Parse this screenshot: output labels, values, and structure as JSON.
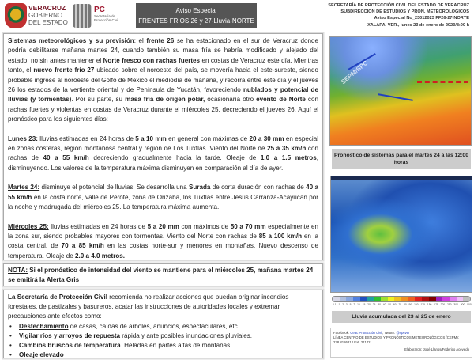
{
  "header": {
    "logo1": {
      "line1": "VERACRUZ",
      "line2": "GOBIERNO",
      "line3": "DEL ESTADO"
    },
    "logo2": {
      "abbr": "PC",
      "line1": "Secretaría de",
      "line2": "Protección Civil"
    },
    "title_line1": "Aviso Especial",
    "title_line2": "FRENTES FRIOS 26 y 27-Lluvia-NORTE",
    "org_line1": "SECRETARÍA DE PROTECCIÓN CIVIL DEL ESTADO DE VERACRUZ",
    "org_line2": "SUBDIRECCIÓN DE ESTUDIOS Y PRON. METEOROLÓGICOS",
    "aviso_no": "Aviso Especial No_23012023 FF26-27-NORTE",
    "place_date": "XALAPA, VER., lunes 23 de enero de 2023/8:00 h"
  },
  "main": {
    "paragraphs": [
      [
        [
          "Sistemas meteorológicos y su previsión",
          "bu"
        ],
        [
          ": el ",
          ""
        ],
        [
          "frente 26",
          "b"
        ],
        [
          " se ha estacionado en el sur de Veracruz donde podría debilitarse mañana martes 24, cuando también su masa fría se habría modificado y alejado del estado, no sin antes mantener el ",
          ""
        ],
        [
          "Norte fresco con rachas fuertes",
          "b"
        ],
        [
          " en costas de Veracruz este día. Mientras tanto, el ",
          ""
        ],
        [
          "nuevo frente frío 27",
          "b"
        ],
        [
          " ubicado sobre el noroeste del país, se movería hacia el este-sureste, siendo probable ingrese al noroeste del Golfo de México el mediodía de mañana, y recorra entre este día y el jueves 26 los estados de la vertiente oriental y de Península de Yucatán, favoreciendo ",
          ""
        ],
        [
          "nublados y potencial de lluvias (y tormentas)",
          "b"
        ],
        [
          ". Por su parte, su ",
          ""
        ],
        [
          "masa fría de origen polar,",
          "b"
        ],
        [
          " ocasionaría otro ",
          ""
        ],
        [
          "evento de Norte",
          "b"
        ],
        [
          " con rachas fuertes y violentas en costas de Veracruz durante el miércoles 25, decreciendo el jueves 26. Aquí el pronóstico para los siguientes días:",
          ""
        ]
      ],
      [
        [
          "Lunes 23:",
          "bu"
        ],
        [
          " lluvias estimadas en 24 horas de ",
          ""
        ],
        [
          "5 a 10 mm",
          "b"
        ],
        [
          " en general con máximas de ",
          ""
        ],
        [
          "20 a 30 mm",
          "b"
        ],
        [
          " en especial en zonas costeras, región montañosa central y región de Los Tuxtlas. Viento del Norte de ",
          ""
        ],
        [
          "25 a 35 km/h",
          "b"
        ],
        [
          " con rachas de ",
          ""
        ],
        [
          "40 a 55 km/h",
          "b"
        ],
        [
          " decreciendo gradualmente hacia la tarde. Oleaje de ",
          ""
        ],
        [
          "1.0 a 1.5 metros",
          "b"
        ],
        [
          ", disminuyendo. Los valores de la temperatura máxima disminuyen en comparación al día de ayer.",
          ""
        ]
      ],
      [
        [
          "Martes 24:",
          "bu"
        ],
        [
          " disminuye el potencial de lluvias. Se desarrolla una ",
          ""
        ],
        [
          "Surada",
          "b"
        ],
        [
          " de corta duración con rachas de ",
          ""
        ],
        [
          "40 a 55 km/h",
          "b"
        ],
        [
          " en la costa norte, valle de Perote, zona de Orizaba, los Tuxtlas entre Jesús Carranza-Acayucan por la noche y madrugada del miércoles 25. La temperatura máxima aumenta.",
          ""
        ]
      ],
      [
        [
          "Miércoles 25:",
          "bu"
        ],
        [
          " lluvias estimadas en 24 horas de ",
          ""
        ],
        [
          "5 a 20 mm",
          "b"
        ],
        [
          " con máximos de ",
          ""
        ],
        [
          "50 a 70 mm",
          "b"
        ],
        [
          " especialmente en la zona sur, siendo probables mayores con tormentas. Viento del Norte con rachas de ",
          ""
        ],
        [
          "85 a 100 km/h",
          "b"
        ],
        [
          " en la costa central, de ",
          ""
        ],
        [
          "70 a 85 km/h",
          "b"
        ],
        [
          " en las costas norte-sur y menores en montañas. Nuevo descenso de temperatura. Oleaje de ",
          ""
        ],
        [
          "2.0 a 4.0 metros.",
          "b"
        ]
      ]
    ]
  },
  "nota": {
    "label": "NOTA:",
    "text": " Si el pronóstico de intensidad del viento se mantiene para el miércoles 25, mañana martes 24 se emitirá la Alerta Gris"
  },
  "reco": {
    "org": "La Secretaría de Protección Civil",
    "text": " recomienda no realizar acciones que puedan originar incendios forestales, de pastizales y basureros, acatar las instrucciones de autoridades locales y extremar precauciones ante efectos como:",
    "items": [
      {
        "bold": "Destechamiento",
        "rest": " de casas, caídas de árboles, anuncios, espectaculares, etc."
      },
      {
        "bold": "Vigilar ríos y arroyos de repuesta",
        "rest": " rápida y ante posibles inundaciones pluviales."
      },
      {
        "bold": "Cambios bruscos de temperatura",
        "rest": ". Heladas en partes altas de montañas."
      },
      {
        "bold": "Oleaje elevado",
        "rest": ""
      }
    ]
  },
  "map1": {
    "watermark": "SEPM/SPC",
    "caption": "Pronóstico de sistemas para el martes 24 a las 12:00 horas"
  },
  "map2": {
    "caption": "Lluvia acumulada del 23 al 25 de enero",
    "colorbar_colors": [
      "#d8d8e8",
      "#b0c0e0",
      "#8aa8e0",
      "#5080e0",
      "#2050c0",
      "#20a0a0",
      "#30c030",
      "#a0e030",
      "#f0f020",
      "#f0c020",
      "#f09020",
      "#f06020",
      "#e02020",
      "#b01010",
      "#800000",
      "#a020c0",
      "#d040e0",
      "#e080f0",
      "#f0c0f8",
      "#c0c0c0"
    ],
    "colorbar_labels": [
      "0.1",
      "1",
      "2",
      "3",
      "5",
      "7",
      "10",
      "15",
      "20",
      "25",
      "30",
      "40",
      "50",
      "60",
      "70",
      "80",
      "90",
      "100",
      "125",
      "150",
      "175",
      "200",
      "250",
      "300",
      "400",
      "500"
    ]
  },
  "footer": {
    "fb_label": "Facebook: ",
    "fb_link": "Ceac Protección Civil",
    "tw_label": ", Twitter: ",
    "tw_link": "@spcver",
    "line2": "LÍNEA CENTRO DE ESTUDIOS Y PRONÓSTICOS METEOROLÓGICOS (CEPM):",
    "line3": "228 8186812 Ext. 21142",
    "credits": "Elaboraron: José Llanos/Federico Acevedo"
  }
}
